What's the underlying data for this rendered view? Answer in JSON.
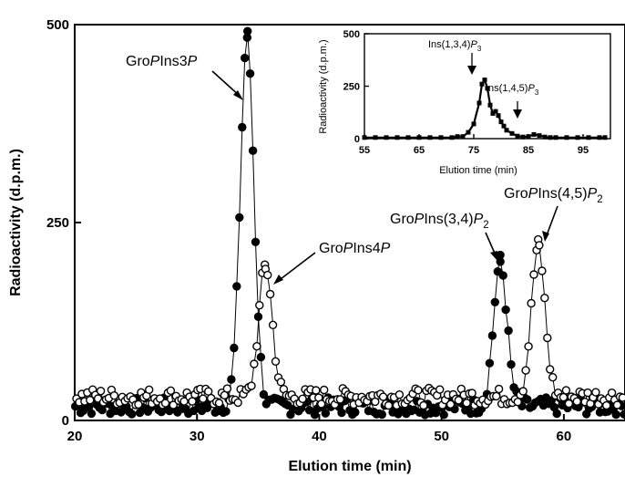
{
  "chart_data": [
    {
      "type": "scatter",
      "xlabel": "Elution time (min)",
      "ylabel": "Radioactivity (d.p.m.)",
      "xlim": [
        20,
        65
      ],
      "ylim": [
        0,
        500
      ],
      "x_ticks": [
        "20",
        "30",
        "40",
        "50",
        "60"
      ],
      "y_ticks": [
        "0",
        "250",
        "500"
      ],
      "grid": false,
      "series": [
        {
          "marker": "filled-circle",
          "color": "#000000",
          "baseline": 18,
          "peaks": [
            {
              "label": "GroPIns3P",
              "x": 34.1,
              "y": 485
            },
            {
              "label": "GroPIns(3,4)P2",
              "x": 54.8,
              "y": 200
            }
          ]
        },
        {
          "marker": "open-circle",
          "color": "#000000",
          "baseline": 30,
          "peaks": [
            {
              "label": "GroPIns4P",
              "x": 35.6,
              "y": 195
            },
            {
              "label": "GroPIns(4,5)P2",
              "x": 57.9,
              "y": 220
            }
          ]
        }
      ],
      "annotations": [
        {
          "id": "gpi3p",
          "parts": [
            {
              "t": "Gro"
            },
            {
              "t": "P",
              "i": true
            },
            {
              "t": "Ins3"
            },
            {
              "t": "P",
              "i": true
            }
          ]
        },
        {
          "id": "gpi4p",
          "parts": [
            {
              "t": "Gro"
            },
            {
              "t": "P",
              "i": true
            },
            {
              "t": "Ins4"
            },
            {
              "t": "P",
              "i": true
            }
          ]
        },
        {
          "id": "gpi34p2",
          "parts": [
            {
              "t": "Gro"
            },
            {
              "t": "P",
              "i": true
            },
            {
              "t": "Ins(3,4)"
            },
            {
              "t": "P",
              "i": true
            },
            {
              "t": "2",
              "sub": true
            }
          ]
        },
        {
          "id": "gpi45p2",
          "parts": [
            {
              "t": "Gro"
            },
            {
              "t": "P",
              "i": true
            },
            {
              "t": "Ins(4,5)"
            },
            {
              "t": "P",
              "i": true
            },
            {
              "t": "2",
              "sub": true
            }
          ]
        }
      ]
    },
    {
      "type": "line",
      "xlabel": "Elution time (min)",
      "ylabel": "Radioactivity (d.p.m.)",
      "xlim": [
        55,
        100
      ],
      "ylim": [
        0,
        500
      ],
      "x_ticks": [
        "55",
        "65",
        "75",
        "85",
        "95"
      ],
      "y_ticks": [
        "0",
        "250",
        "500"
      ],
      "grid": false,
      "series": [
        {
          "marker": "filled-square",
          "color": "#000000",
          "x": [
            55,
            57,
            59,
            61,
            63,
            65,
            67,
            69,
            71,
            72,
            73,
            74,
            75,
            76,
            76.5,
            77,
            77.5,
            78,
            78.5,
            79,
            79.5,
            80,
            80.5,
            81,
            82,
            83,
            84,
            85,
            86,
            87,
            88,
            89,
            90,
            92,
            94,
            96,
            98,
            99
          ],
          "y": [
            5,
            5,
            5,
            5,
            5,
            5,
            5,
            5,
            5,
            10,
            10,
            30,
            70,
            170,
            260,
            280,
            240,
            160,
            120,
            130,
            110,
            80,
            60,
            40,
            25,
            12,
            8,
            10,
            20,
            15,
            8,
            5,
            5,
            5,
            5,
            5,
            5,
            5
          ]
        }
      ],
      "annotations": [
        {
          "id": "ins134",
          "parts": [
            {
              "t": "Ins(1,3,4)"
            },
            {
              "t": "P",
              "i": true
            },
            {
              "t": "3",
              "sub": true
            }
          ]
        },
        {
          "id": "ins145",
          "parts": [
            {
              "t": "Ins(1,4,5)"
            },
            {
              "t": "P",
              "i": true
            },
            {
              "t": "3",
              "sub": true
            }
          ]
        }
      ]
    }
  ]
}
